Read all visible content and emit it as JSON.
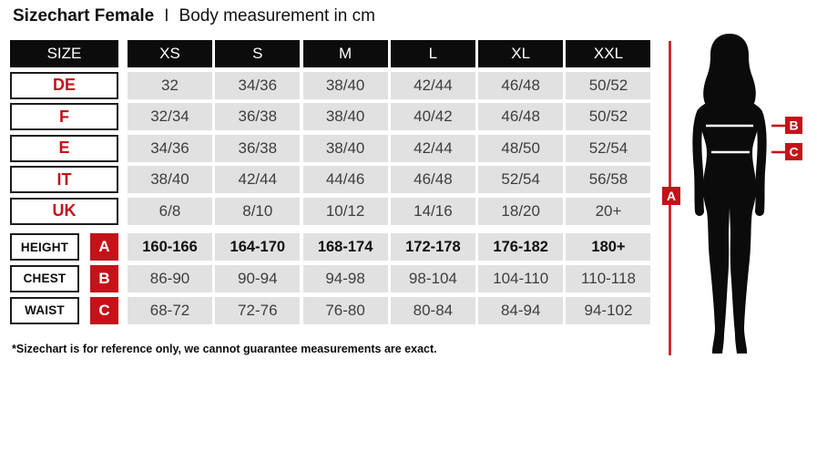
{
  "title": {
    "main": "Sizechart Female",
    "separator": "I",
    "subtitle": "Body measurement in cm"
  },
  "table": {
    "header": {
      "label": "SIZE",
      "columns": [
        "XS",
        "S",
        "M",
        "L",
        "XL",
        "XXL"
      ]
    },
    "size_rows": [
      {
        "label": "DE",
        "values": [
          "32",
          "34/36",
          "38/40",
          "42/44",
          "46/48",
          "50/52"
        ]
      },
      {
        "label": "F",
        "values": [
          "32/34",
          "36/38",
          "38/40",
          "40/42",
          "46/48",
          "50/52"
        ]
      },
      {
        "label": "E",
        "values": [
          "34/36",
          "36/38",
          "38/40",
          "42/44",
          "48/50",
          "52/54"
        ]
      },
      {
        "label": "IT",
        "values": [
          "38/40",
          "42/44",
          "44/46",
          "46/48",
          "52/54",
          "56/58"
        ]
      },
      {
        "label": "UK",
        "values": [
          "6/8",
          "8/10",
          "10/12",
          "14/16",
          "18/20",
          "20+"
        ]
      }
    ],
    "measurement_rows": [
      {
        "label": "HEIGHT",
        "marker": "A",
        "bold": true,
        "values": [
          "160-166",
          "164-170",
          "168-174",
          "172-178",
          "176-182",
          "180+"
        ]
      },
      {
        "label": "CHEST",
        "marker": "B",
        "bold": false,
        "values": [
          "86-90",
          "90-94",
          "94-98",
          "98-104",
          "104-110",
          "110-118"
        ]
      },
      {
        "label": "WAIST",
        "marker": "C",
        "bold": false,
        "values": [
          "68-72",
          "72-76",
          "76-80",
          "80-84",
          "84-94",
          "94-102"
        ]
      }
    ]
  },
  "figure": {
    "markers": [
      "A",
      "B",
      "C"
    ]
  },
  "footnote": "*Sizechart is for reference only, we cannot guarantee measurements are exact.",
  "colors": {
    "accent_red": "#c41219",
    "header_black": "#0c0c0c",
    "cell_gray": "#e1e1e1",
    "cell_text": "#3e3e3e"
  }
}
